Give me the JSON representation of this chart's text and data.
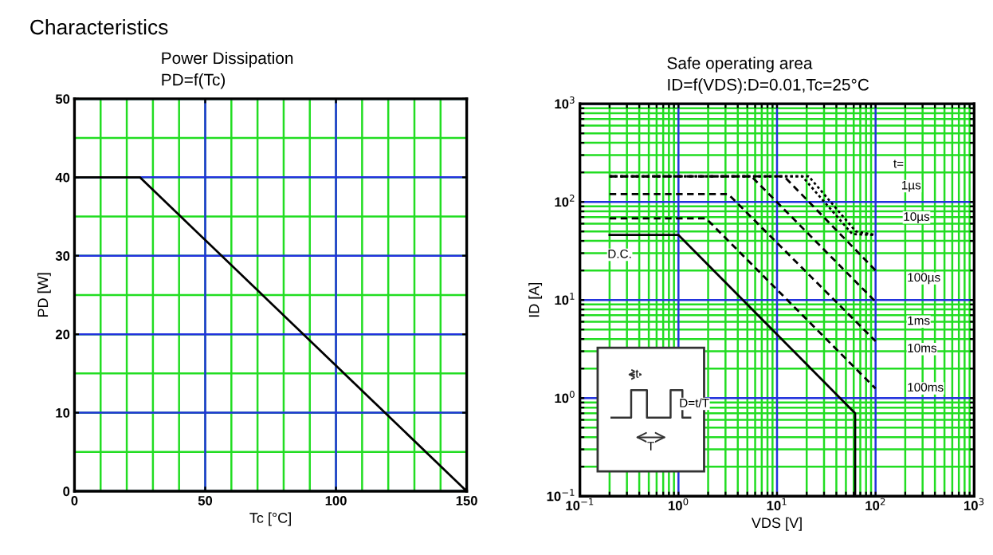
{
  "chart_data": [
    {
      "type": "line",
      "title": "Power Dissipation",
      "subtitle": "PD=f(Tc)",
      "xlabel": "Tc [°C]",
      "ylabel": "PD [W]",
      "annotations": [
        "Characteristics"
      ],
      "series": [
        {
          "color": "#000000",
          "x": [
            0,
            25,
            150
          ],
          "values": [
            40,
            40,
            0
          ]
        }
      ],
      "xlim": [
        0,
        150
      ],
      "xticks": [
        0,
        50,
        100,
        150
      ],
      "ylim": [
        0,
        50
      ],
      "yticks": [
        0,
        10,
        20,
        30,
        40,
        50
      ],
      "grid": true,
      "line_style": "solid",
      "marker": "none"
    },
    {
      "type": "line",
      "title": "Safe operating area",
      "subtitle": "ID=f(VDS):D=0.01,Tc=25°C",
      "xlabel": "VDS [V]",
      "ylabel": "ID [A]",
      "log": "xy",
      "series": [
        {
          "color": "#000000",
          "line_style": "dotted",
          "x": [
            0.2,
            21,
            63,
            100
          ],
          "values": [
            182,
            182,
            50,
            46
          ]
        },
        {
          "color": "#000000",
          "line_style": "dotted",
          "x": [
            0.2,
            18,
            58,
            100
          ],
          "values": [
            182,
            182,
            47,
            46
          ]
        },
        {
          "color": "#000000",
          "line_style": "dashed",
          "x": [
            0.2,
            11.8,
            100
          ],
          "values": [
            182,
            182,
            20
          ]
        },
        {
          "color": "#000000",
          "line_style": "dashed",
          "x": [
            0.2,
            5.5,
            100
          ],
          "values": [
            182,
            182,
            9.6
          ]
        },
        {
          "color": "#000000",
          "line_style": "dashed",
          "x": [
            0.2,
            3.2,
            100
          ],
          "values": [
            120,
            120,
            3.8
          ]
        },
        {
          "color": "#000000",
          "line_style": "dashed",
          "x": [
            0.2,
            1.9,
            100
          ],
          "values": [
            68,
            68,
            1.25
          ]
        },
        {
          "color": "#000000",
          "line_style": "solid",
          "x": [
            0.2,
            1,
            62,
            62
          ],
          "values": [
            46,
            46,
            0.7,
            0.1
          ]
        }
      ],
      "annotations": [
        "t=",
        "1µs",
        "10µs",
        "100µs",
        "1ms",
        "10ms",
        "100ms",
        "D.C.",
        "t",
        "T",
        "D=t/T"
      ],
      "xlim": [
        0.1,
        1000
      ],
      "xticks": [
        {
          "value": 0.1,
          "label": "10$^{−1}$"
        },
        {
          "value": 0.2,
          "label": null
        },
        {
          "value": 0.3,
          "label": null
        },
        {
          "value": 0.4,
          "label": null
        },
        {
          "value": 0.5,
          "label": null
        },
        {
          "value": 0.6,
          "label": null
        },
        {
          "value": 0.7,
          "label": null
        },
        {
          "value": 0.8,
          "label": null
        },
        {
          "value": 0.9,
          "label": null
        },
        {
          "value": 1,
          "label": "10$^{0}$"
        },
        {
          "value": 2,
          "label": null
        },
        {
          "value": 3,
          "label": null
        },
        {
          "value": 4,
          "label": null
        },
        {
          "value": 5,
          "label": null
        },
        {
          "value": 6,
          "label": null
        },
        {
          "value": 7,
          "label": null
        },
        {
          "value": 8,
          "label": null
        },
        {
          "value": 9,
          "label": null
        },
        {
          "value": 10,
          "label": "10$^{1}$"
        },
        {
          "value": 20,
          "label": null
        },
        {
          "value": 30,
          "label": null
        },
        {
          "value": 40,
          "label": null
        },
        {
          "value": 50,
          "label": null
        },
        {
          "value": 60,
          "label": null
        },
        {
          "value": 70,
          "label": null
        },
        {
          "value": 80,
          "label": null
        },
        {
          "value": 90,
          "label": null
        },
        {
          "value": 100,
          "label": "10$^{2}$"
        },
        {
          "value": 200,
          "label": null
        },
        {
          "value": 300,
          "label": null
        },
        {
          "value": 400,
          "label": null
        },
        {
          "value": 500,
          "label": null
        },
        {
          "value": 600,
          "label": null
        },
        {
          "value": 700,
          "label": null
        },
        {
          "value": 800,
          "label": null
        },
        {
          "value": 900,
          "label": null
        },
        {
          "value": 1000,
          "label": "10$^{3}$"
        }
      ],
      "ylim": [
        0.1,
        1000
      ],
      "yticks": [
        {
          "value": 0.1,
          "label": "10$^{−1}$"
        },
        {
          "value": 0.2,
          "label": null
        },
        {
          "value": 0.3,
          "label": null
        },
        {
          "value": 0.4,
          "label": null
        },
        {
          "value": 0.5,
          "label": null
        },
        {
          "value": 0.6,
          "label": null
        },
        {
          "value": 0.7,
          "label": null
        },
        {
          "value": 0.8,
          "label": null
        },
        {
          "value": 0.9,
          "label": null
        },
        {
          "value": 1,
          "label": "10$^{0}$"
        },
        {
          "value": 2,
          "label": null
        },
        {
          "value": 3,
          "label": null
        },
        {
          "value": 4,
          "label": null
        },
        {
          "value": 5,
          "label": null
        },
        {
          "value": 6,
          "label": null
        },
        {
          "value": 7,
          "label": null
        },
        {
          "value": 8,
          "label": null
        },
        {
          "value": 9,
          "label": null
        },
        {
          "value": 10,
          "label": "10$^{1}$"
        },
        {
          "value": 20,
          "label": null
        },
        {
          "value": 30,
          "label": null
        },
        {
          "value": 40,
          "label": null
        },
        {
          "value": 50,
          "label": null
        },
        {
          "value": 60,
          "label": null
        },
        {
          "value": 70,
          "label": null
        },
        {
          "value": 80,
          "label": null
        },
        {
          "value": 90,
          "label": null
        },
        {
          "value": 100,
          "label": "10$^{2}$"
        },
        {
          "value": 200,
          "label": null
        },
        {
          "value": 300,
          "label": null
        },
        {
          "value": 400,
          "label": null
        },
        {
          "value": 500,
          "label": null
        },
        {
          "value": 600,
          "label": null
        },
        {
          "value": 700,
          "label": null
        },
        {
          "value": 800,
          "label": null
        },
        {
          "value": 900,
          "label": null
        },
        {
          "value": 1000,
          "label": "10$^{3}$"
        }
      ],
      "grid": true,
      "marker": "none"
    }
  ]
}
